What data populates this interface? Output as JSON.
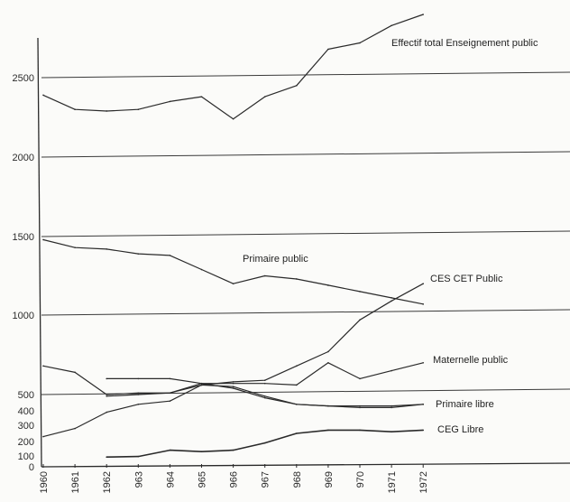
{
  "chart_data": {
    "type": "line",
    "title": "",
    "xlabel": "",
    "ylabel": "",
    "x": [
      1960,
      1961,
      1962,
      1963,
      1964,
      1965,
      1966,
      1967,
      1968,
      1969,
      1970,
      1971,
      1972
    ],
    "x_tick_labels": [
      "1960",
      "1961",
      "1962",
      "963",
      "964",
      "965",
      "966",
      "967",
      "968",
      "969",
      "970",
      "1971",
      "1972"
    ],
    "y_ticks": [
      {
        "value": 0,
        "label": "0"
      },
      {
        "value": 100,
        "label": "100"
      },
      {
        "value": 200,
        "label": "200"
      },
      {
        "value": 300,
        "label": "300"
      },
      {
        "value": 400,
        "label": "400"
      },
      {
        "value": 500,
        "label": "500"
      },
      {
        "value": 1000,
        "label": "1000"
      },
      {
        "value": 1500,
        "label": "1500"
      },
      {
        "value": 2000,
        "label": "2000"
      },
      {
        "value": 2500,
        "label": "2500"
      }
    ],
    "gridlines": [
      500,
      1000,
      1500,
      2000,
      2500
    ],
    "ylim": [
      0,
      2900
    ],
    "grid": true,
    "legend": "inline labels",
    "line_color": "#2a2a2a",
    "series": [
      {
        "name": "Effectif total Enseignement public",
        "x": [
          1960,
          1961,
          1962,
          1963,
          1964,
          1965,
          1966,
          1967,
          1968,
          1969,
          1970,
          1971,
          1972
        ],
        "values": [
          2390,
          2300,
          2290,
          2300,
          2350,
          2380,
          2240,
          2380,
          2450,
          2680,
          2720,
          2830,
          2910
        ]
      },
      {
        "name": "Primaire public",
        "x": [
          1960,
          1961,
          1962,
          1963,
          1964,
          1965,
          1966,
          1967,
          1968,
          1969,
          1970,
          1971,
          1972
        ],
        "values": [
          1480,
          1430,
          1420,
          1390,
          1380,
          1290,
          1200,
          1250,
          1230,
          1190,
          1150,
          1110,
          1070
        ]
      },
      {
        "name": "CES CET Public",
        "x": [
          1962,
          1963,
          1964,
          1965,
          1966,
          1967,
          1968,
          1969,
          1970,
          1971,
          1972
        ],
        "values": [
          490,
          500,
          510,
          570,
          570,
          570,
          560,
          700,
          600,
          650,
          700
        ]
      },
      {
        "name": "Maternelle public",
        "x": [
          1960,
          1961,
          1962,
          1963,
          1964,
          1965,
          1966,
          1967,
          1968,
          1969,
          1970,
          1971,
          1972
        ],
        "values": [
          680,
          640,
          500,
          510,
          510,
          560,
          580,
          590,
          680,
          770,
          970,
          1090,
          1200
        ]
      },
      {
        "name": "Primaire libre",
        "x": [
          1962,
          1963,
          1964,
          1965,
          1966,
          1967,
          1968,
          1969,
          1970,
          1971,
          1972
        ],
        "values": [
          600,
          600,
          600,
          570,
          540,
          480,
          440,
          430,
          430,
          430,
          440
        ]
      },
      {
        "name": "CEG Libre",
        "x": [
          1960,
          1961,
          1962,
          1963,
          1964,
          1965,
          1966,
          1967,
          1968,
          1969,
          1970,
          1971,
          1972
        ],
        "values": [
          230,
          280,
          390,
          440,
          460,
          560,
          550,
          490,
          440,
          430,
          420,
          420,
          440
        ]
      },
      {
        "name": "",
        "x": [
          1962,
          1963,
          1964,
          1965,
          1966,
          1967,
          1968,
          1969,
          1970,
          1971,
          1972
        ],
        "values": [
          90,
          95,
          140,
          130,
          140,
          190,
          250,
          270,
          270,
          260,
          270
        ]
      }
    ]
  }
}
